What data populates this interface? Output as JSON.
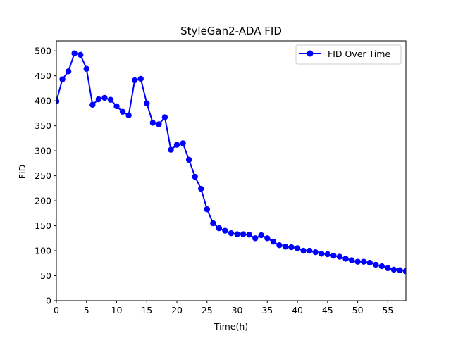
{
  "chart_data": {
    "type": "line",
    "title": "StyleGan2-ADA FID",
    "xlabel": "Time(h)",
    "ylabel": "FID",
    "xlim": [
      0,
      58
    ],
    "ylim": [
      0,
      520
    ],
    "x_ticks": [
      0,
      5,
      10,
      15,
      20,
      25,
      30,
      35,
      40,
      45,
      50,
      55
    ],
    "y_ticks": [
      0,
      50,
      100,
      150,
      200,
      250,
      300,
      350,
      400,
      450,
      500
    ],
    "grid": false,
    "legend_position": "upper right",
    "series": [
      {
        "name": "FID Over Time",
        "color": "#0000ff",
        "marker": "circle",
        "x": [
          0,
          1,
          2,
          3,
          4,
          5,
          6,
          7,
          8,
          9,
          10,
          11,
          12,
          13,
          14,
          15,
          16,
          17,
          18,
          19,
          20,
          21,
          22,
          23,
          24,
          25,
          26,
          27,
          28,
          29,
          30,
          31,
          32,
          33,
          34,
          35,
          36,
          37,
          38,
          39,
          40,
          41,
          42,
          43,
          44,
          45,
          46,
          47,
          48,
          49,
          50,
          51,
          52,
          53,
          54,
          55,
          56,
          57,
          58
        ],
        "y": [
          399,
          443,
          459,
          495,
          492,
          464,
          392,
          403,
          406,
          402,
          389,
          378,
          371,
          441,
          444,
          395,
          356,
          353,
          367,
          302,
          312,
          315,
          282,
          248,
          224,
          183,
          155,
          145,
          140,
          135,
          133,
          133,
          132,
          125,
          131,
          125,
          118,
          111,
          108,
          107,
          105,
          100,
          100,
          97,
          94,
          93,
          90,
          88,
          84,
          81,
          78,
          78,
          76,
          72,
          69,
          65,
          62,
          61,
          59
        ]
      }
    ]
  }
}
